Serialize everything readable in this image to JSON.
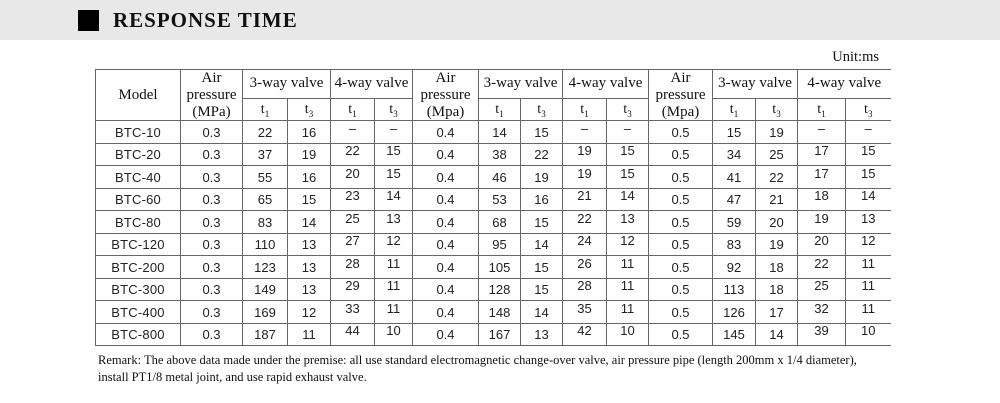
{
  "page": {
    "title": "RESPONSE TIME",
    "unit_label": "Unit:ms",
    "remark": "Remark: The above data made under the premise: all use standard electromagnetic change-over valve, air pressure pipe (length 200mm x 1/4 diameter), install PT1/8 metal joint, and use rapid exhaust valve."
  },
  "table": {
    "model_label": "Model",
    "t_symbol": "t",
    "t1_subscript": "1",
    "t3_subscript": "3",
    "dash": "–",
    "sections": [
      {
        "pressure_label": "Air pressure (MPa)",
        "three_way_label": "3-way valve",
        "four_way_label": "4-way valve"
      },
      {
        "pressure_label": "Air pressure (Mpa)",
        "three_way_label": "3-way valve",
        "four_way_label": "4-way valve"
      },
      {
        "pressure_label": "Air pressure (Mpa)",
        "three_way_label": "3-way valve",
        "four_way_label": "4-way valve"
      }
    ],
    "rows": [
      {
        "model": "BTC-10",
        "values": [
          "0.3",
          "22",
          "16",
          "–",
          "–",
          "0.4",
          "14",
          "15",
          "–",
          "–",
          "0.5",
          "15",
          "19",
          "–",
          "–"
        ]
      },
      {
        "model": "BTC-20",
        "values": [
          "0.3",
          "37",
          "19",
          "22",
          "15",
          "0.4",
          "38",
          "22",
          "19",
          "15",
          "0.5",
          "34",
          "25",
          "17",
          "15"
        ]
      },
      {
        "model": "BTC-40",
        "values": [
          "0.3",
          "55",
          "16",
          "20",
          "15",
          "0.4",
          "46",
          "19",
          "19",
          "15",
          "0.5",
          "41",
          "22",
          "17",
          "15"
        ]
      },
      {
        "model": "BTC-60",
        "values": [
          "0.3",
          "65",
          "15",
          "23",
          "14",
          "0.4",
          "53",
          "16",
          "21",
          "14",
          "0.5",
          "47",
          "21",
          "18",
          "14"
        ]
      },
      {
        "model": "BTC-80",
        "values": [
          "0.3",
          "83",
          "14",
          "25",
          "13",
          "0.4",
          "68",
          "15",
          "22",
          "13",
          "0.5",
          "59",
          "20",
          "19",
          "13"
        ]
      },
      {
        "model": "BTC-120",
        "values": [
          "0.3",
          "110",
          "13",
          "27",
          "12",
          "0.4",
          "95",
          "14",
          "24",
          "12",
          "0.5",
          "83",
          "19",
          "20",
          "12"
        ]
      },
      {
        "model": "BTC-200",
        "values": [
          "0.3",
          "123",
          "13",
          "28",
          "11",
          "0.4",
          "105",
          "15",
          "26",
          "11",
          "0.5",
          "92",
          "18",
          "22",
          "11"
        ]
      },
      {
        "model": "BTC-300",
        "values": [
          "0.3",
          "149",
          "13",
          "29",
          "11",
          "0.4",
          "128",
          "15",
          "28",
          "11",
          "0.5",
          "113",
          "18",
          "25",
          "11"
        ]
      },
      {
        "model": "BTC-400",
        "values": [
          "0.3",
          "169",
          "12",
          "33",
          "11",
          "0.4",
          "148",
          "14",
          "35",
          "11",
          "0.5",
          "126",
          "17",
          "32",
          "11"
        ]
      },
      {
        "model": "BTC-800",
        "values": [
          "0.3",
          "187",
          "11",
          "44",
          "10",
          "0.4",
          "167",
          "13",
          "42",
          "10",
          "0.5",
          "145",
          "14",
          "39",
          "10"
        ]
      }
    ]
  }
}
